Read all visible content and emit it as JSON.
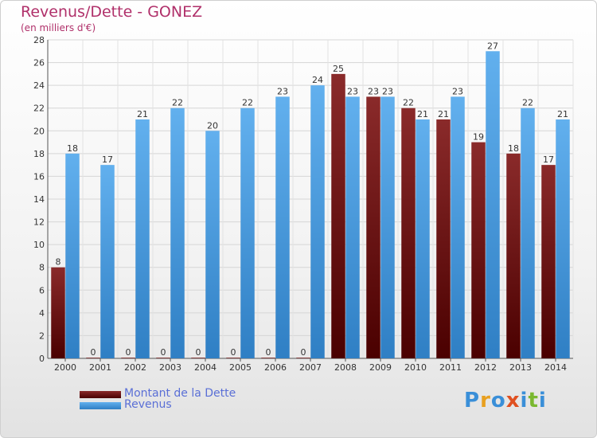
{
  "title": "Revenus/Dette - GONEZ",
  "subtitle": "(en milliers d'€)",
  "colors": {
    "dette": "#7a1a1a",
    "dette_dark": "#4a0000",
    "revenus": "#5aa8e8",
    "revenus_dark": "#2f7fc4",
    "title": "#b0306a",
    "legend_text": "#5a6fd6"
  },
  "chart_data": {
    "type": "bar",
    "title": "Revenus/Dette - GONEZ",
    "subtitle": "(en milliers d'€)",
    "categories": [
      "2000",
      "2001",
      "2002",
      "2003",
      "2004",
      "2005",
      "2006",
      "2007",
      "2008",
      "2009",
      "2010",
      "2011",
      "2012",
      "2013",
      "2014"
    ],
    "series": [
      {
        "name": "Montant de la Dette",
        "values": [
          8,
          0,
          0,
          0,
          0,
          0,
          0,
          0,
          25,
          23,
          22,
          21,
          19,
          18,
          17
        ]
      },
      {
        "name": "Revenus",
        "values": [
          18,
          17,
          21,
          22,
          20,
          22,
          23,
          24,
          23,
          23,
          21,
          23,
          27,
          22,
          21
        ]
      }
    ],
    "ylim": [
      0,
      28
    ],
    "yticks": [
      0,
      2,
      4,
      6,
      8,
      10,
      12,
      14,
      16,
      18,
      20,
      22,
      24,
      26,
      28
    ],
    "grid": true,
    "legend": "bottom-left"
  },
  "legend": {
    "items": [
      {
        "label": "Montant de la Dette"
      },
      {
        "label": "Revenus"
      }
    ]
  },
  "logo": {
    "text": "Proxiti"
  }
}
